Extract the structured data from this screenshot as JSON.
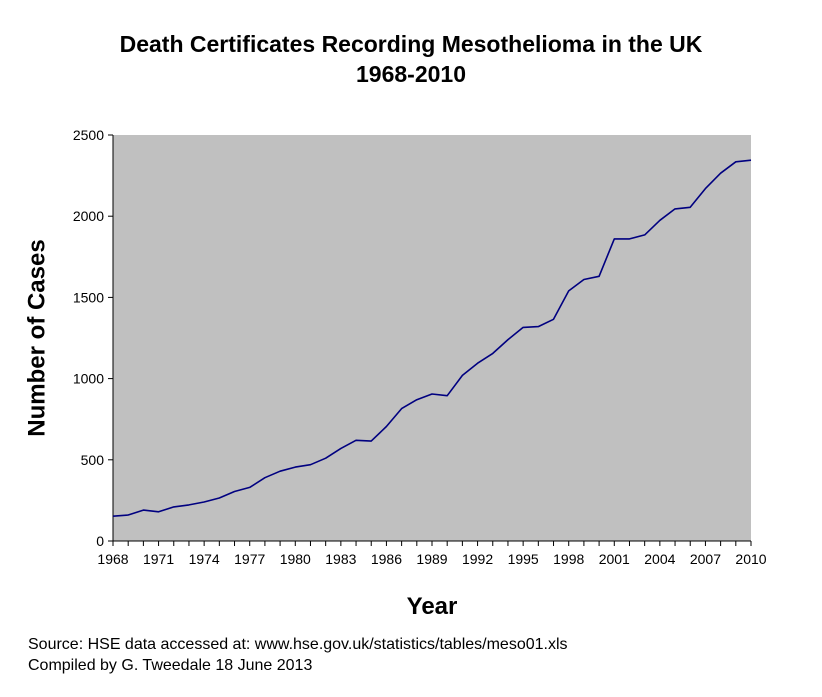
{
  "chart_data": {
    "type": "line",
    "title": "Death Certificates Recording Mesothelioma in the UK",
    "subtitle": "1968-2010",
    "xlabel": "Year",
    "ylabel": "Number of Cases",
    "xlim": [
      1968,
      2010
    ],
    "ylim": [
      0,
      2500
    ],
    "x_ticks": [
      "1968",
      "1971",
      "1974",
      "1977",
      "1980",
      "1983",
      "1986",
      "1989",
      "1992",
      "1995",
      "1998",
      "2001",
      "2004",
      "2007",
      "2010"
    ],
    "y_ticks": [
      "0",
      "500",
      "1000",
      "1500",
      "2000",
      "2500"
    ],
    "grid": false,
    "legend": "none",
    "plot_background": "#c0c0c0",
    "line_color": "#000080",
    "series": [
      {
        "x": [
          1968,
          1969,
          1970,
          1971,
          1972,
          1973,
          1974,
          1975,
          1976,
          1977,
          1978,
          1979,
          1980,
          1981,
          1982,
          1983,
          1984,
          1985,
          1986,
          1987,
          1988,
          1989,
          1990,
          1991,
          1992,
          1993,
          1994,
          1995,
          1996,
          1997,
          1998,
          1999,
          2000,
          2001,
          2002,
          2003,
          2004,
          2005,
          2006,
          2007,
          2008,
          2009,
          2010
        ],
        "values": [
          153,
          160,
          190,
          180,
          210,
          222,
          240,
          265,
          305,
          330,
          390,
          430,
          455,
          470,
          510,
          570,
          620,
          615,
          705,
          815,
          870,
          905,
          895,
          1020,
          1095,
          1155,
          1240,
          1315,
          1320,
          1365,
          1540,
          1610,
          1630,
          1860,
          1860,
          1885,
          1975,
          2045,
          2055,
          2170,
          2265,
          2335,
          2345
        ]
      }
    ]
  },
  "footer": {
    "source": "Source: HSE data accessed at: www.hse.gov.uk/statistics/tables/meso01.xls",
    "compiled": "Compiled by G. Tweedale 18 June 2013"
  }
}
